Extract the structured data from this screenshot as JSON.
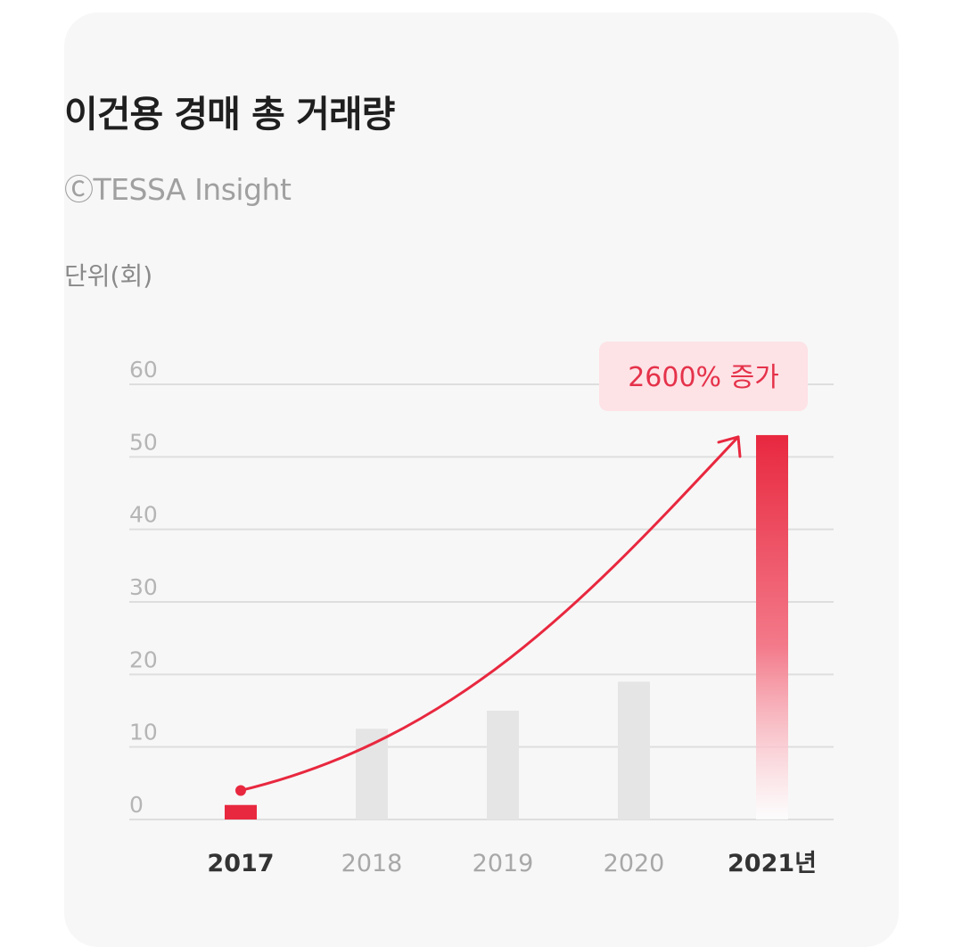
{
  "header": {
    "title": "이건용 경매 총 거래량",
    "source": "ⒸTESSA Insight",
    "unit": "단위(회)"
  },
  "colors": {
    "accent": "#e8283f",
    "accent_light": "#fde2e6",
    "bar_muted": "#e5e5e5",
    "grid": "#dedede"
  },
  "chart_data": {
    "type": "bar",
    "title": "이건용 경매 총 거래량",
    "ylabel": "단위(회)",
    "xlabel": "",
    "categories": [
      "2017",
      "2018",
      "2019",
      "2020",
      "2021"
    ],
    "category_labels": [
      "2017",
      "2018",
      "2019",
      "2020",
      "2021년"
    ],
    "values": [
      2,
      12.5,
      15,
      19,
      53
    ],
    "highlight": [
      true,
      false,
      false,
      false,
      true
    ],
    "ylim": [
      0,
      60
    ],
    "yticks": [
      0,
      10,
      20,
      30,
      40,
      50,
      60
    ],
    "yticks_labels": [
      "0",
      "10",
      "20",
      "30",
      "40",
      "50",
      "60"
    ],
    "grid": true,
    "annotation": {
      "text": "2600% 증가",
      "from_category": "2017",
      "from_value": 4,
      "to_category": "2021",
      "to_value": 53
    }
  }
}
